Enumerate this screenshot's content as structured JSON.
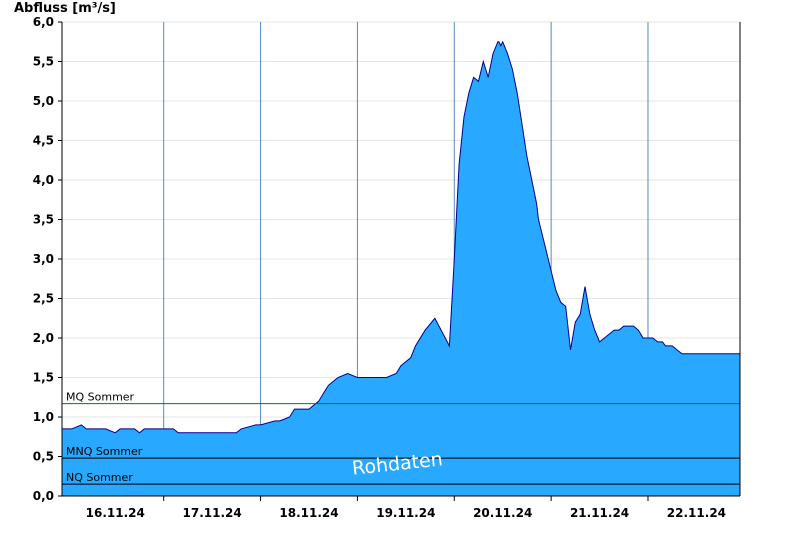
{
  "chart_data": {
    "type": "area",
    "ylabel": "Abfluss [m³/s]",
    "xlabel": "",
    "ylim": [
      0,
      6.0
    ],
    "yticks": [
      "0,0",
      "0,5",
      "1,0",
      "1,5",
      "2,0",
      "2,5",
      "3,0",
      "3,5",
      "4,0",
      "4,5",
      "5,0",
      "5,5",
      "6,0"
    ],
    "xlim": [
      -0.55,
      6.45
    ],
    "xticks": [
      {
        "x": 0,
        "label": "16.11.24"
      },
      {
        "x": 1,
        "label": "17.11.24"
      },
      {
        "x": 2,
        "label": "18.11.24"
      },
      {
        "x": 3,
        "label": "19.11.24"
      },
      {
        "x": 4,
        "label": "20.11.24"
      },
      {
        "x": 5,
        "label": "21.11.24"
      },
      {
        "x": 6,
        "label": "22.11.24"
      }
    ],
    "grid": true,
    "fill_color": "#29a8ff",
    "line_color": "#00008b",
    "series": [
      {
        "x": [
          -0.55,
          -0.45,
          -0.35,
          -0.3,
          -0.1,
          0.0,
          0.05,
          0.2,
          0.25,
          0.3,
          0.6,
          0.65,
          0.9,
          1.0,
          1.25,
          1.3,
          1.45,
          1.5,
          1.65,
          1.7,
          1.8,
          1.85,
          2.0,
          2.05,
          2.1,
          2.15,
          2.2,
          2.3,
          2.4,
          2.5,
          2.6,
          2.7,
          2.8,
          2.9,
          2.95,
          3.05,
          3.1,
          3.2,
          3.3,
          3.45,
          3.5,
          3.55,
          3.6,
          3.65,
          3.7,
          3.75,
          3.8,
          3.85,
          3.9,
          3.95,
          3.96,
          3.98,
          4.0,
          4.05,
          4.1,
          4.15,
          4.2,
          4.25,
          4.3,
          4.35,
          4.37,
          4.4,
          4.45,
          4.5,
          4.55,
          4.6,
          4.65,
          4.7,
          4.75,
          4.8,
          4.85,
          4.9,
          4.95,
          5.0,
          5.05,
          5.1,
          5.15,
          5.2,
          5.25,
          5.3,
          5.35,
          5.4,
          5.45,
          5.5,
          5.55,
          5.6,
          5.65,
          5.68,
          5.7,
          5.75,
          5.8,
          5.85,
          5.9,
          5.95,
          6.0,
          6.1,
          6.2,
          6.3,
          6.4,
          6.45
        ],
        "values": [
          0.85,
          0.85,
          0.9,
          0.85,
          0.85,
          0.8,
          0.85,
          0.85,
          0.8,
          0.85,
          0.85,
          0.8,
          0.8,
          0.8,
          0.8,
          0.85,
          0.9,
          0.9,
          0.95,
          0.95,
          1.0,
          1.1,
          1.1,
          1.15,
          1.2,
          1.3,
          1.4,
          1.5,
          1.55,
          1.5,
          1.5,
          1.5,
          1.5,
          1.55,
          1.65,
          1.75,
          1.9,
          2.1,
          2.25,
          1.9,
          3.0,
          4.2,
          4.8,
          5.1,
          5.3,
          5.25,
          5.5,
          5.3,
          5.6,
          5.75,
          5.75,
          5.7,
          5.75,
          5.6,
          5.4,
          5.1,
          4.7,
          4.3,
          4.0,
          3.7,
          3.5,
          3.35,
          3.1,
          2.85,
          2.6,
          2.45,
          2.4,
          1.85,
          2.2,
          2.3,
          2.65,
          2.3,
          2.1,
          1.95,
          2.0,
          2.05,
          2.1,
          2.1,
          2.15,
          2.15,
          2.15,
          2.1,
          2.0,
          2.0,
          2.0,
          1.95,
          1.95,
          1.9,
          1.9,
          1.9,
          1.85,
          1.8,
          1.8,
          1.8,
          1.8,
          1.8,
          1.8,
          1.8,
          1.8,
          1.8
        ]
      }
    ],
    "reference_lines": [
      {
        "label": "MQ Sommer",
        "value": 1.17,
        "color": "#008000"
      },
      {
        "label": "MNQ Sommer",
        "value": 0.48,
        "color": "#000000"
      },
      {
        "label": "NQ Sommer",
        "value": 0.15,
        "color": "#000000"
      }
    ],
    "watermark": "Rohdaten"
  }
}
